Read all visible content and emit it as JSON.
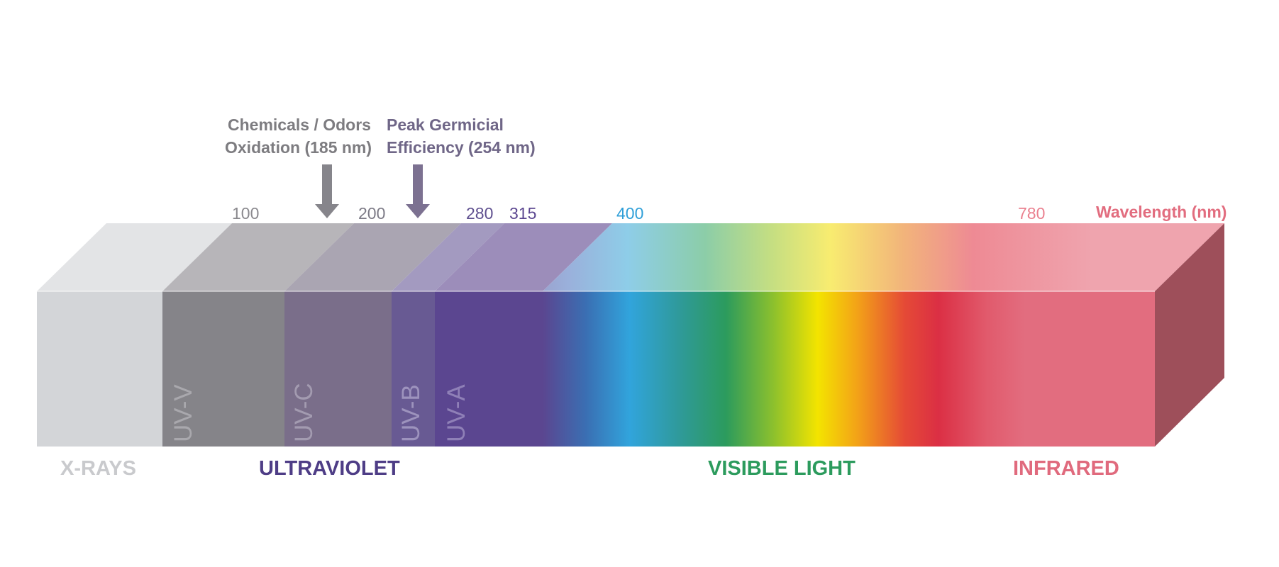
{
  "annotations": {
    "oxidation_line1": "Chemicals / Odors",
    "oxidation_line2": "Oxidation (185 nm)",
    "germicidal_line1": "Peak Germicial",
    "germicidal_line2": "Efficiency (254 nm)"
  },
  "ticks": {
    "t100": "100",
    "t200": "200",
    "t280": "280",
    "t315": "315",
    "t400": "400",
    "t780": "780"
  },
  "axis_label": "Wavelength (nm)",
  "bands": {
    "uvv": "UV-V",
    "uvc": "UV-C",
    "uvb": "UV-B",
    "uva": "UV-A"
  },
  "categories": {
    "xrays": "X-RAYS",
    "ultraviolet": "ULTRAVIOLET",
    "visible": "VISIBLE LIGHT",
    "infrared": "INFRARED"
  },
  "colors": {
    "xrays": "#d2d4d7",
    "uvv": "#858489",
    "uvc": "#7a6e8a",
    "uvb": "#685a93",
    "uva": "#5b4690",
    "infrared": "#e26d7f",
    "side": "#9e4f5a",
    "ultraviolet_text": "#4e3d86",
    "visible_text": "#2c9b5d",
    "infrared_text": "#e06a7d",
    "xrays_text": "#c9cacd",
    "arrow": "#86858b",
    "arrow2": "#7c7191"
  },
  "icons": {
    "oxidation_arrow": "down-arrow-icon",
    "germicidal_arrow": "down-arrow-icon"
  }
}
